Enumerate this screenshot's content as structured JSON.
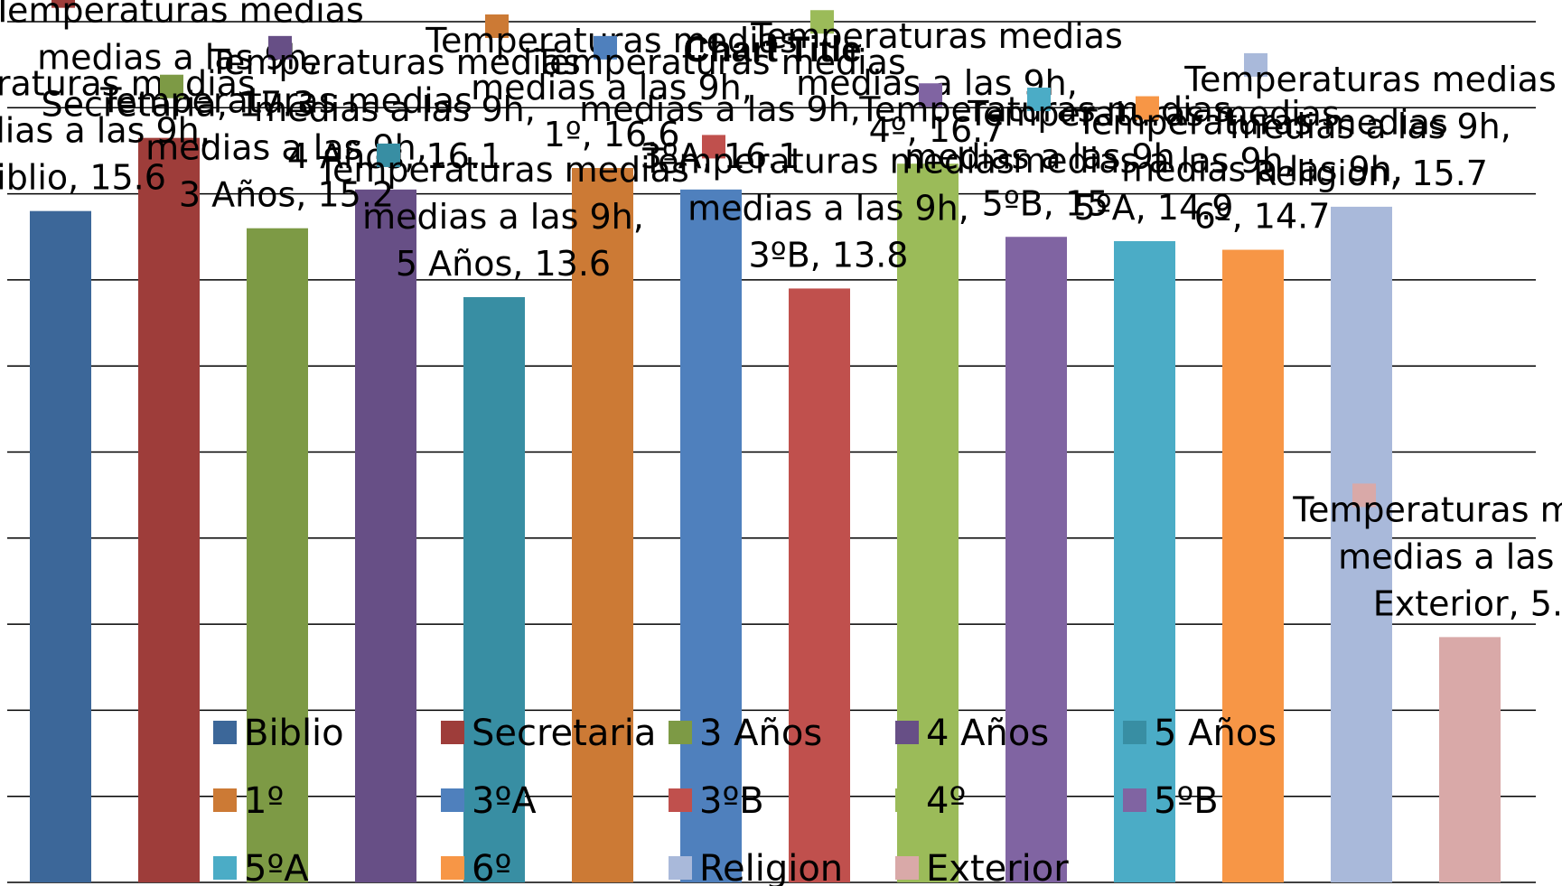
{
  "chart_data": {
    "type": "bar",
    "title": "Chart Title",
    "series_name": "Temperaturas medias a las 9h",
    "categories": [
      "Biblio",
      "Secretaria",
      "3 Años",
      "4 Años",
      "5 Años",
      "1º",
      "3ºA",
      "3ºB",
      "4º",
      "5ºB",
      "5ºA",
      "6º",
      "Religion",
      "Exterior"
    ],
    "values": [
      15.6,
      17.3,
      15.2,
      16.1,
      13.6,
      16.6,
      16.1,
      13.8,
      16.7,
      15.0,
      14.9,
      14.7,
      15.7,
      5.7
    ],
    "colors": [
      "#3C6799",
      "#9E3D3A",
      "#7D9A45",
      "#674F86",
      "#388EA3",
      "#CC7A35",
      "#4F80BD",
      "#C0504D",
      "#9BBB59",
      "#8064A2",
      "#4BACC6",
      "#F79646",
      "#A9B9DA",
      "#D9A9A8"
    ],
    "ylim": [
      0,
      20
    ],
    "grid": true,
    "legend_position": "bottom"
  }
}
